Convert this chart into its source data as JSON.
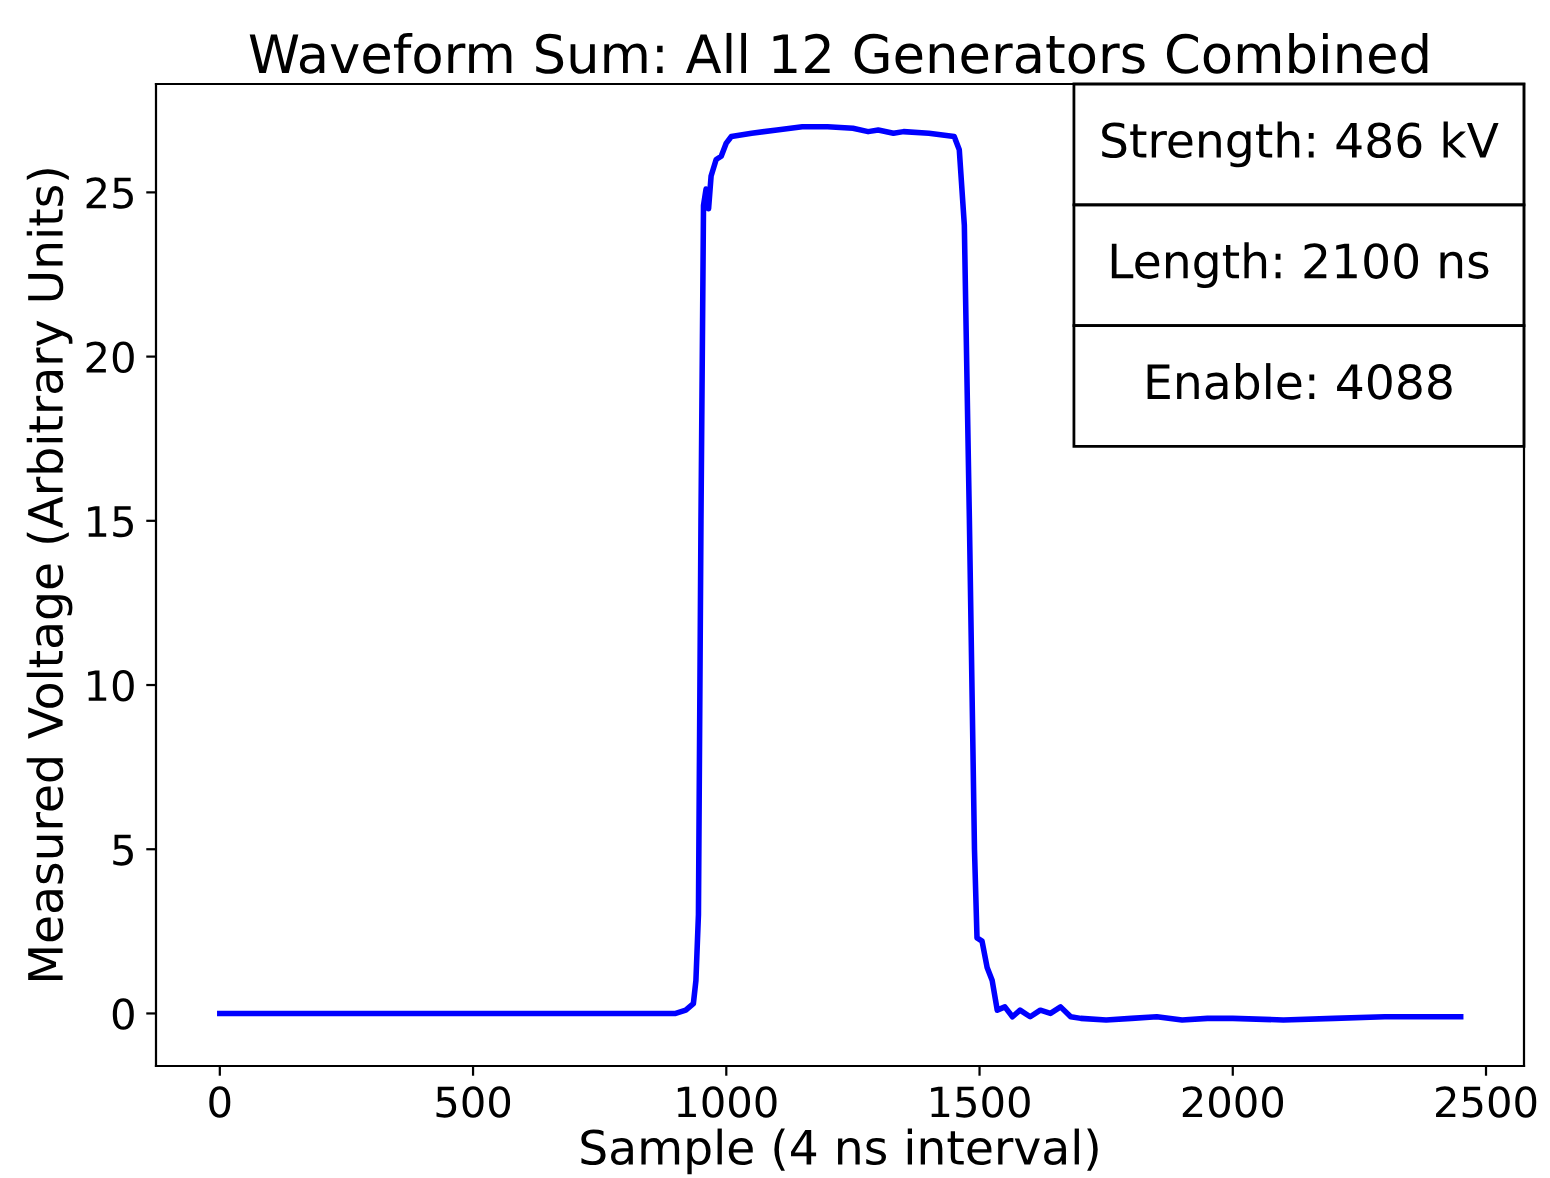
{
  "chart_data": {
    "type": "line",
    "title": "Waveform Sum: All 12 Generators Combined",
    "xlabel": "Sample (4 ns interval)",
    "ylabel": "Measured Voltage (Arbitrary Units)",
    "x": [
      0,
      100,
      200,
      300,
      400,
      500,
      600,
      700,
      800,
      900,
      920,
      935,
      940,
      945,
      950,
      955,
      960,
      965,
      970,
      980,
      990,
      1000,
      1010,
      1050,
      1100,
      1150,
      1200,
      1250,
      1280,
      1300,
      1330,
      1350,
      1400,
      1450,
      1460,
      1470,
      1480,
      1490,
      1495,
      1505,
      1515,
      1525,
      1535,
      1550,
      1565,
      1580,
      1600,
      1620,
      1640,
      1660,
      1680,
      1700,
      1750,
      1800,
      1850,
      1900,
      1950,
      2000,
      2100,
      2200,
      2300,
      2400,
      2450
    ],
    "series": [
      {
        "color": "#0000ff",
        "values": [
          0,
          0,
          0,
          0,
          0,
          0,
          0,
          0,
          0,
          0,
          0.1,
          0.3,
          1.0,
          3,
          15,
          24.6,
          25.1,
          24.5,
          25.5,
          26.0,
          26.1,
          26.5,
          26.7,
          26.8,
          26.9,
          27.0,
          27.0,
          26.95,
          26.85,
          26.9,
          26.8,
          26.85,
          26.8,
          26.7,
          26.3,
          24,
          15,
          5,
          2.3,
          2.2,
          1.4,
          1.0,
          0.1,
          0.2,
          -0.1,
          0.1,
          -0.1,
          0.1,
          0.0,
          0.2,
          -0.1,
          -0.15,
          -0.2,
          -0.15,
          -0.1,
          -0.2,
          -0.15,
          -0.15,
          -0.2,
          -0.15,
          -0.1,
          -0.1,
          -0.1
        ]
      }
    ],
    "xlim": [
      -126,
      2575
    ],
    "ylim": [
      -1.6,
      28.3
    ],
    "xticks": [
      0,
      500,
      1000,
      1500,
      2000,
      2500
    ],
    "yticks": [
      0,
      5,
      10,
      15,
      20,
      25
    ],
    "annotations": [
      "Strength: 486 kV",
      "Length: 2100 ns",
      "Enable: 4088"
    ],
    "grid": false,
    "legend": false,
    "marker": "none",
    "line_style": "solid"
  }
}
